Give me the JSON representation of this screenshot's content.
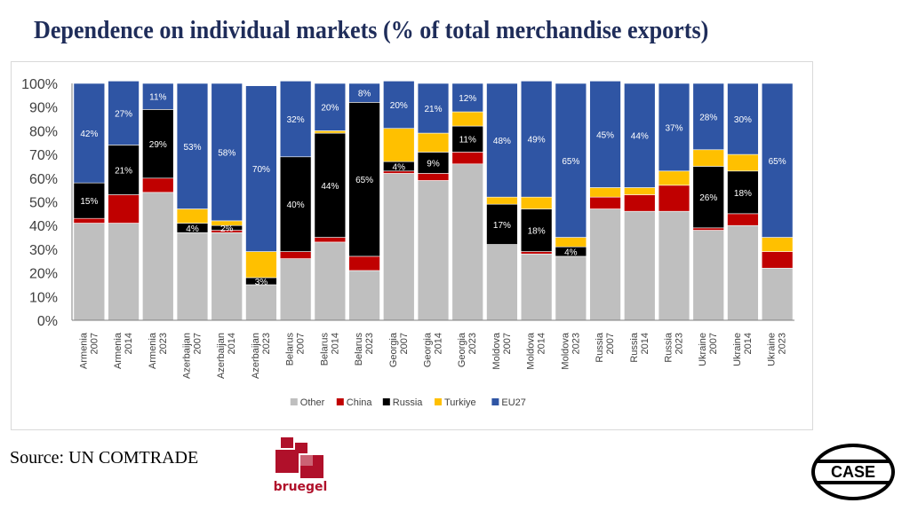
{
  "header": {
    "title": "Dependence on individual markets (% of total merchandise exports)"
  },
  "footer": {
    "source": "Source: UN COMTRADE"
  },
  "logos": {
    "bruegel": "bruegel",
    "case": "CASE"
  },
  "colors": {
    "Other": "#bfbfbf",
    "China": "#c00000",
    "Russia": "#000000",
    "Turkiye": "#ffc000",
    "EU27": "#2f55a4"
  },
  "chart_data": {
    "type": "bar",
    "stacked": true,
    "categories": [
      [
        "Armenia",
        "2007"
      ],
      [
        "Armenia",
        "2014"
      ],
      [
        "Armenia",
        "2023"
      ],
      [
        "Azerbaijan",
        "2007"
      ],
      [
        "Azerbaijan",
        "2014"
      ],
      [
        "Azerbaijan",
        "2023"
      ],
      [
        "Belarus",
        "2007"
      ],
      [
        "Belarus",
        "2014"
      ],
      [
        "Belarus",
        "2023"
      ],
      [
        "Georgia",
        "2007"
      ],
      [
        "Georgia",
        "2014"
      ],
      [
        "Georgia",
        "2023"
      ],
      [
        "Moldova",
        "2007"
      ],
      [
        "Moldova",
        "2014"
      ],
      [
        "Moldova",
        "2023"
      ],
      [
        "Russia",
        "2007"
      ],
      [
        "Russia",
        "2014"
      ],
      [
        "Russia",
        "2023"
      ],
      [
        "Ukraine",
        "2007"
      ],
      [
        "Ukraine",
        "2014"
      ],
      [
        "Ukraine",
        "2023"
      ]
    ],
    "series": [
      {
        "name": "Other",
        "values": [
          41,
          41,
          54,
          37,
          37,
          15,
          26,
          33,
          21,
          62,
          59,
          66,
          32,
          28,
          27,
          47,
          46,
          46,
          38,
          40,
          22
        ]
      },
      {
        "name": "China",
        "values": [
          2,
          12,
          6,
          0,
          1,
          0,
          3,
          2,
          6,
          1,
          3,
          5,
          0,
          1,
          0,
          5,
          7,
          11,
          1,
          5,
          7
        ]
      },
      {
        "name": "Russia",
        "values": [
          15,
          21,
          29,
          4,
          2,
          3,
          40,
          44,
          65,
          4,
          9,
          11,
          17,
          18,
          4,
          0,
          0,
          0,
          26,
          18,
          0
        ]
      },
      {
        "name": "Turkiye",
        "values": [
          0,
          0,
          0,
          6,
          2,
          11,
          0,
          1,
          0,
          14,
          8,
          6,
          3,
          5,
          4,
          4,
          3,
          6,
          7,
          7,
          6
        ]
      },
      {
        "name": "EU27",
        "values": [
          42,
          27,
          11,
          53,
          58,
          70,
          32,
          20,
          8,
          20,
          21,
          12,
          48,
          49,
          65,
          45,
          44,
          37,
          28,
          30,
          65
        ]
      }
    ],
    "data_labels": {
      "Russia": [
        "15%",
        "21%",
        "29%",
        "4%",
        "2%",
        "3%",
        "40%",
        "44%",
        "65%",
        "4%",
        "9%",
        "11%",
        "17%",
        "18%",
        "4%",
        "",
        "",
        "",
        "26%",
        "18%",
        ""
      ],
      "EU27": [
        "42%",
        "27%",
        "11%",
        "53%",
        "58%",
        "70%",
        "32%",
        "20%",
        "8%",
        "20%",
        "21%",
        "12%",
        "48%",
        "49%",
        "65%",
        "45%",
        "44%",
        "37%",
        "28%",
        "30%",
        "65%"
      ]
    },
    "yticks": [
      "0%",
      "10%",
      "20%",
      "30%",
      "40%",
      "50%",
      "60%",
      "70%",
      "80%",
      "90%",
      "100%"
    ],
    "ylim": [
      0,
      100
    ],
    "grid": false,
    "legend": {
      "placement": "bottom",
      "entries": [
        "Other",
        "China",
        "Russia",
        "Turkiye",
        "EU27"
      ]
    }
  }
}
